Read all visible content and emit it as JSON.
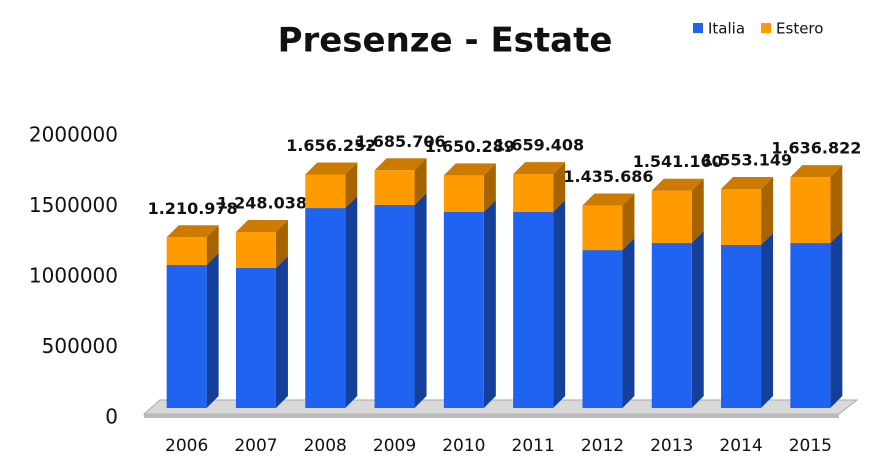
{
  "chart_data": {
    "type": "bar3d-stacked",
    "title": "Presenze - Estate",
    "categories": [
      "2006",
      "2007",
      "2008",
      "2009",
      "2010",
      "2011",
      "2012",
      "2013",
      "2014",
      "2015"
    ],
    "series": [
      {
        "name": "Italia",
        "color": "#1f63f0",
        "values": [
          1014000,
          993000,
          1418000,
          1440000,
          1390000,
          1390000,
          1120000,
          1170000,
          1156000,
          1170000
        ]
      },
      {
        "name": "Estero",
        "color": "#ff9a00",
        "values": [
          197000,
          255000,
          238000,
          246000,
          260000,
          269000,
          316000,
          371000,
          397000,
          467000
        ]
      }
    ],
    "totals": [
      1210978,
      1248038,
      1656252,
      1685706,
      1650289,
      1659408,
      1435686,
      1541160,
      1553149,
      1636822
    ],
    "total_labels": [
      "1.210.978",
      "1.248.038",
      "1.656.252",
      "1.685.706",
      "1.650.289",
      "1.659.408",
      "1.435.686",
      "1.541.160",
      "1.553.149",
      "1.636.822"
    ],
    "ylim": [
      0,
      2000000
    ],
    "yticks": [
      0,
      500000,
      1000000,
      1500000,
      2000000
    ],
    "grid": false,
    "legend": "top-right"
  }
}
